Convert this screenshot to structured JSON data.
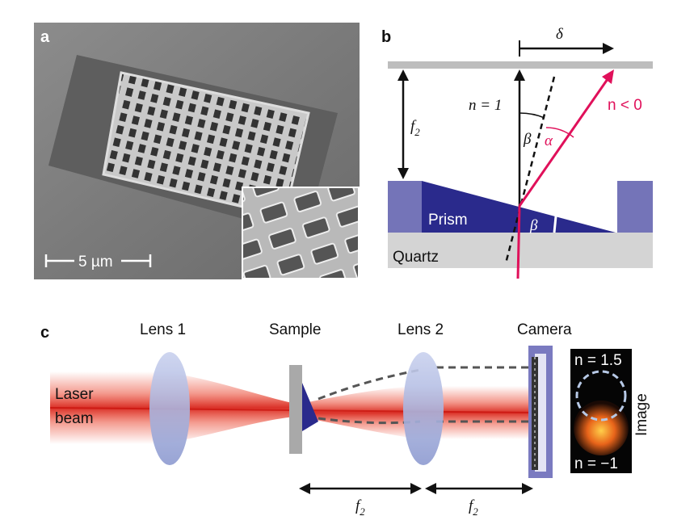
{
  "panel_a": {
    "letter": "a",
    "scale_bar": "5 µm"
  },
  "panel_b": {
    "letter": "b",
    "delta": "δ",
    "f2_f": "f",
    "f2_sub": "2",
    "n1": "n = 1",
    "nneg": "n < 0",
    "beta": "β",
    "alpha": "α",
    "prism": "Prism",
    "quartz": "Quartz",
    "colors": {
      "prism": "#2a2a8c",
      "prism_side": "#7474b8",
      "ray": "#e0105a",
      "quartz": "#d4d4d4"
    }
  },
  "panel_c": {
    "letter": "c",
    "lens1": "Lens 1",
    "sample": "Sample",
    "lens2": "Lens 2",
    "camera": "Camera",
    "laser_line1": "Laser",
    "laser_line2": "beam",
    "n15": "n = 1.5",
    "nm1": "n = −1",
    "image_label": "Image",
    "f2_f": "f",
    "f2_sub": "2",
    "colors": {
      "beam": "#e8341c",
      "lens": "#b9c3e4",
      "camera": "#7a7ac0"
    }
  }
}
